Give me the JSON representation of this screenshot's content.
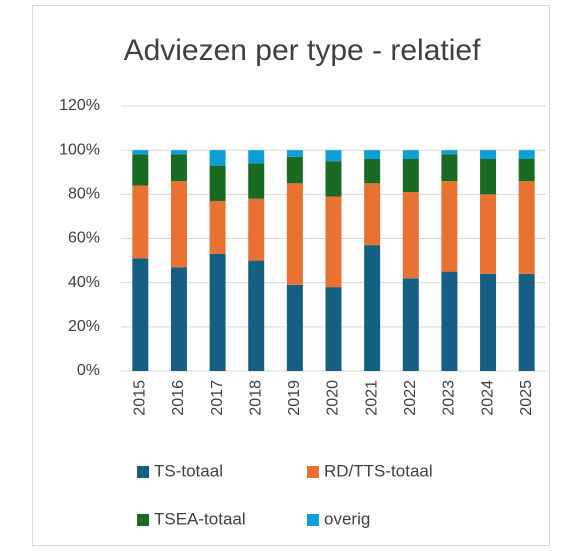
{
  "chart_data": {
    "type": "stacked_bar",
    "title": "Adviezen per type - relatief",
    "categories": [
      "2015",
      "2016",
      "2017",
      "2018",
      "2019",
      "2020",
      "2021",
      "2022",
      "2023",
      "2024",
      "2025"
    ],
    "series": [
      {
        "name": "TS-totaal",
        "color": "#156082",
        "values": [
          51,
          47,
          53,
          50,
          39,
          38,
          57,
          42,
          45,
          44,
          44
        ]
      },
      {
        "name": "RD/TTS-totaal",
        "color": "#E97132",
        "values": [
          33,
          39,
          24,
          28,
          46,
          41,
          28,
          39,
          41,
          36,
          42
        ]
      },
      {
        "name": "TSEA-totaal",
        "color": "#196B24",
        "values": [
          14,
          12,
          16,
          16,
          12,
          16,
          11,
          15,
          12,
          16,
          10
        ]
      },
      {
        "name": "overig",
        "color": "#0F9ED5",
        "values": [
          2,
          2,
          7,
          6,
          3,
          5,
          4,
          4,
          2,
          4,
          4
        ]
      }
    ],
    "ylim": [
      0,
      120
    ],
    "yticks": [
      {
        "value": 0,
        "label": "0%"
      },
      {
        "value": 20,
        "label": "20%"
      },
      {
        "value": 40,
        "label": "40%"
      },
      {
        "value": 60,
        "label": "60%"
      },
      {
        "value": 80,
        "label": "80%"
      },
      {
        "value": 100,
        "label": "100%"
      },
      {
        "value": 120,
        "label": "120%"
      }
    ],
    "grid": true,
    "legend": "bottom"
  }
}
